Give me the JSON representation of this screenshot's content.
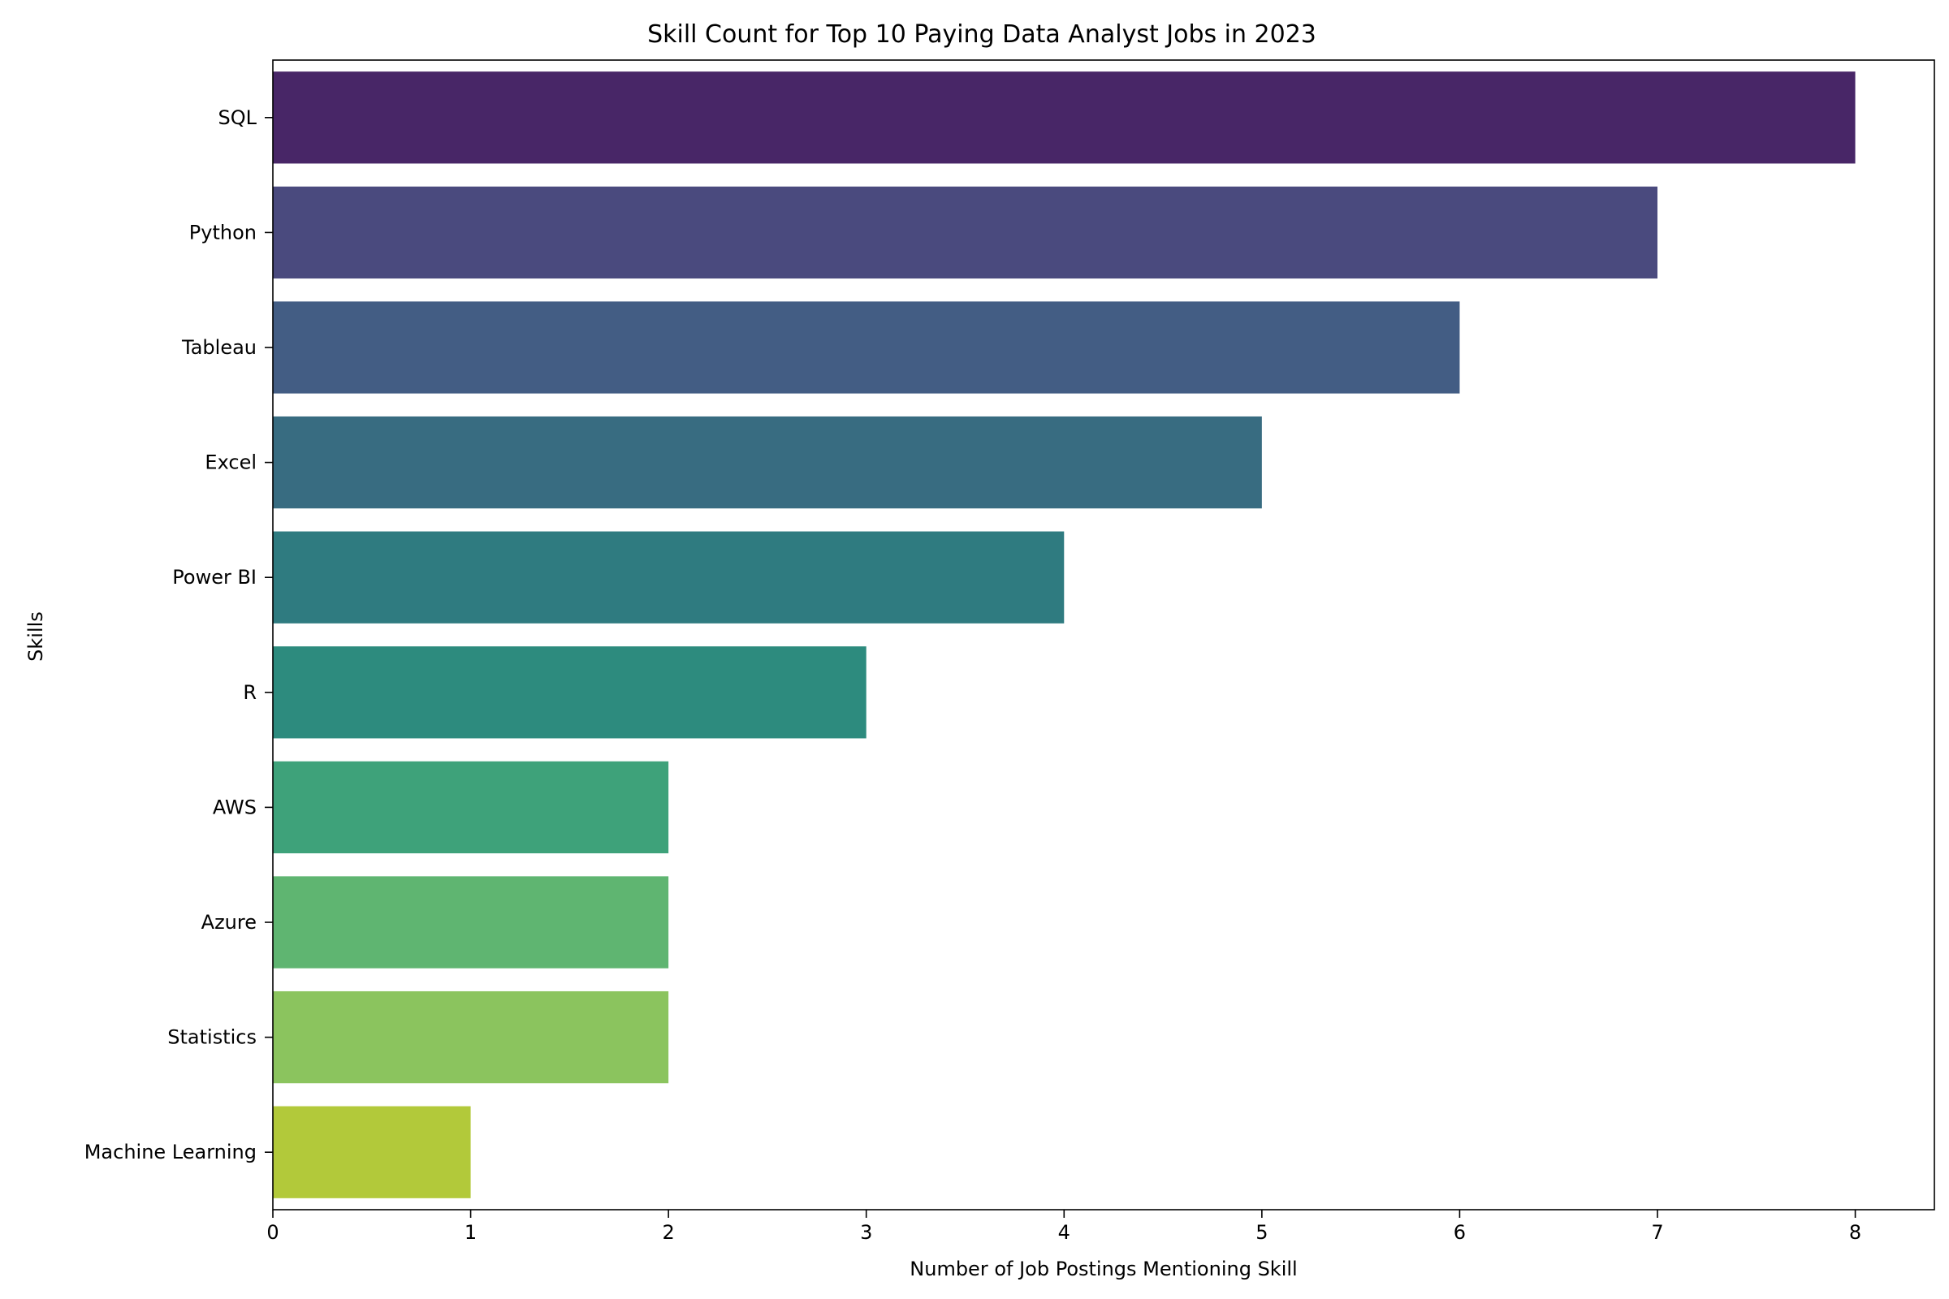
{
  "chart_data": {
    "type": "bar",
    "orientation": "horizontal",
    "title": "Skill Count for Top 10 Paying Data Analyst Jobs in 2023",
    "xlabel": "Number of Job Postings Mentioning Skill",
    "ylabel": "Skills",
    "categories": [
      "SQL",
      "Python",
      "Tableau",
      "Excel",
      "Power BI",
      "R",
      "AWS",
      "Azure",
      "Statistics",
      "Machine Learning"
    ],
    "values": [
      8,
      7,
      6,
      5,
      4,
      3,
      2,
      2,
      2,
      1
    ],
    "colors": [
      "#482667",
      "#4a4a7e",
      "#435d84",
      "#386c81",
      "#2f7b80",
      "#2d8b7e",
      "#3ea27a",
      "#5fb571",
      "#8bc45e",
      "#b2c93a"
    ],
    "xlim": [
      0,
      8.4
    ],
    "xticks": [
      "0",
      "1",
      "2",
      "3",
      "4",
      "5",
      "6",
      "7",
      "8"
    ],
    "grid": false,
    "legend": "none"
  }
}
